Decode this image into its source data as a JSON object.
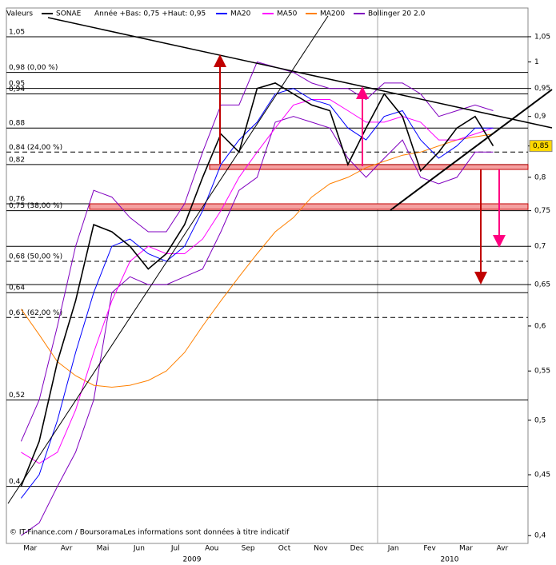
{
  "chart_data": {
    "type": "line",
    "header": "Valeurs",
    "subtitle": "Année +Bas: 0,75 +Haut: 0,95",
    "footer": "© IT-Finance.com / BoursoramaLes informations sont données à titre indicatif",
    "categories": [
      "Mar",
      null,
      "Avr",
      null,
      "Mai",
      null,
      "Jun",
      null,
      "Jul",
      null,
      "Aou",
      null,
      "Sep",
      null,
      "Oct",
      null,
      "Nov",
      null,
      "Dec",
      null,
      "Jan",
      null,
      "Fev",
      null,
      "Mar",
      null,
      "Avr",
      null
    ],
    "years": [
      "2009",
      "2010"
    ],
    "log_scale": true,
    "ylim": [
      0.394,
      1.11
    ],
    "yticks": [
      {
        "value": 1.05,
        "label": "1,05"
      },
      1,
      {
        "value": 0.95,
        "label": "0,95"
      },
      {
        "value": 0.9,
        "label": "0,9"
      },
      {
        "value": 0.85,
        "label": "0,85"
      },
      {
        "value": 0.8,
        "label": "0,8"
      },
      {
        "value": 0.75,
        "label": "0,75"
      },
      {
        "value": 0.7,
        "label": "0,7"
      },
      {
        "value": 0.65,
        "label": "0,65"
      },
      {
        "value": 0.6,
        "label": "0,6"
      },
      {
        "value": 0.55,
        "label": "0,55"
      },
      {
        "value": 0.5,
        "label": "0,5"
      },
      {
        "value": 0.45,
        "label": "0,45"
      },
      {
        "value": 0.4,
        "label": "0,4"
      }
    ],
    "last_price": {
      "value": 0.85,
      "label": "0,85"
    },
    "levels": [
      {
        "value": 1.05,
        "label": "1,05",
        "style": "solid"
      },
      {
        "value": 0.98,
        "label": "0,98 (0,00 %)",
        "style": "solid"
      },
      {
        "value": 0.95,
        "label": "0,95",
        "style": "solid"
      },
      {
        "value": 0.94,
        "label": "0,94",
        "style": "solid"
      },
      {
        "value": 0.88,
        "label": "0,88",
        "style": "solid"
      },
      {
        "value": 0.84,
        "label": "0,84 (24,00 %)",
        "style": "dashed"
      },
      {
        "value": 0.82,
        "label": "0,82",
        "style": "solid"
      },
      {
        "value": 0.76,
        "label": "0,76",
        "style": "solid"
      },
      {
        "value": 0.75,
        "label": "0,75 (38,00 %)",
        "style": "solid"
      },
      {
        "value": 0.7,
        "style": "solid"
      },
      {
        "value": 0.68,
        "label": "0,68 (50,00 %)",
        "style": "dashed"
      },
      {
        "value": 0.65,
        "style": "solid"
      },
      {
        "value": 0.64,
        "label": "0,64",
        "style": "solid"
      },
      {
        "value": 0.61,
        "label": "0,61 (62,00 %)",
        "style": "dashed"
      },
      {
        "value": 0.52,
        "label": "0,52",
        "style": "solid"
      },
      {
        "value": 0.44,
        "label": "0,4",
        "style": "solid"
      }
    ],
    "series": [
      {
        "name": "SONAE",
        "color": "#000000",
        "values": [
          0.44,
          0.48,
          0.56,
          0.63,
          0.73,
          0.72,
          0.7,
          0.67,
          0.69,
          0.73,
          0.8,
          0.87,
          0.84,
          0.95,
          0.96,
          0.94,
          0.92,
          0.91,
          0.82,
          0.88,
          0.94,
          0.9,
          0.81,
          0.84,
          0.88,
          0.9,
          0.85,
          null
        ]
      },
      {
        "name": "MA20",
        "color": "#0000ff",
        "values": [
          0.43,
          0.45,
          0.5,
          0.57,
          0.64,
          0.7,
          0.71,
          0.69,
          0.68,
          0.7,
          0.75,
          0.82,
          0.86,
          0.89,
          0.94,
          0.95,
          0.93,
          0.92,
          0.88,
          0.86,
          0.9,
          0.91,
          0.86,
          0.83,
          0.85,
          0.88,
          0.88,
          null
        ]
      },
      {
        "name": "MA50",
        "color": "#ff00ff",
        "values": [
          0.47,
          0.46,
          0.47,
          0.51,
          0.57,
          0.63,
          0.68,
          0.7,
          0.69,
          0.69,
          0.71,
          0.75,
          0.8,
          0.84,
          0.88,
          0.92,
          0.93,
          0.93,
          0.91,
          0.89,
          0.89,
          0.9,
          0.89,
          0.86,
          0.86,
          0.87,
          0.88,
          null
        ]
      },
      {
        "name": "MA200",
        "color": "#ff8000",
        "values": [
          0.62,
          0.59,
          0.56,
          0.545,
          0.535,
          0.533,
          0.535,
          0.54,
          0.55,
          0.57,
          0.6,
          0.63,
          0.66,
          0.69,
          0.72,
          0.74,
          0.77,
          0.79,
          0.8,
          0.815,
          0.825,
          0.835,
          0.84,
          0.85,
          0.86,
          0.865,
          0.87,
          null
        ]
      },
      {
        "name": "Bollinger 20 2.0",
        "color": "#8000c0",
        "values": [
          0.48,
          0.52,
          0.6,
          0.7,
          0.78,
          0.77,
          0.74,
          0.72,
          0.72,
          0.76,
          0.84,
          0.92,
          0.92,
          1.0,
          0.99,
          0.98,
          0.96,
          0.95,
          0.95,
          0.93,
          0.96,
          0.96,
          0.94,
          0.9,
          0.91,
          0.92,
          0.91,
          null
        ],
        "lower": [
          0.4,
          0.41,
          0.44,
          0.47,
          0.52,
          0.64,
          0.66,
          0.65,
          0.65,
          0.66,
          0.67,
          0.72,
          0.78,
          0.8,
          0.89,
          0.9,
          0.89,
          0.88,
          0.83,
          0.8,
          0.83,
          0.86,
          0.8,
          0.79,
          0.8,
          0.84,
          0.84,
          null
        ]
      }
    ]
  }
}
